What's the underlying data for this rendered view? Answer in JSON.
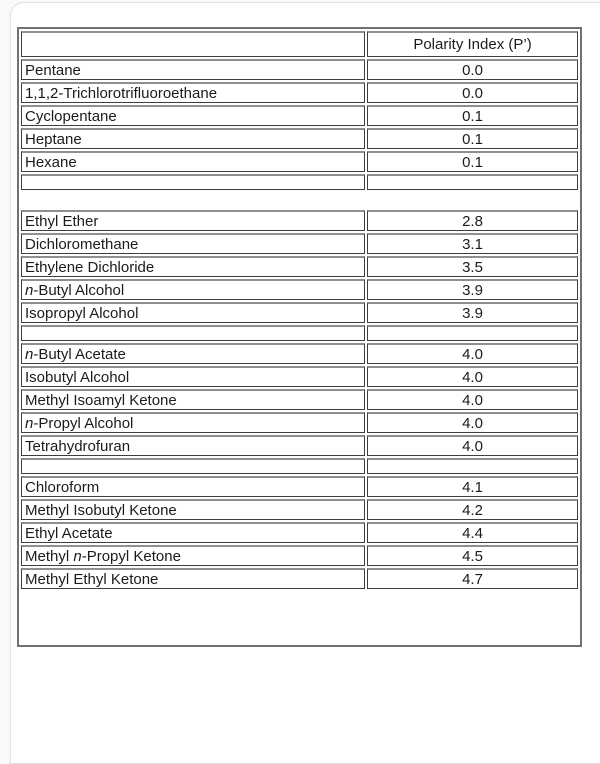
{
  "page": {
    "background_color": "#fafafa",
    "panel_border_color": "#e2e2e2"
  },
  "table": {
    "outer_border_color": "#717171",
    "cell_border_color": "#3e3e3e",
    "cell_border_top_color": "#8f8f8f",
    "header": {
      "name_column_label": "",
      "value_column_label": "Polarity Index (P’)"
    },
    "sections": [
      {
        "has_header": true,
        "trailing_empty_row": true,
        "groups": [
          [
            {
              "name": [
                {
                  "text": "Pentane"
                }
              ],
              "value": "0.0"
            },
            {
              "name": [
                {
                  "text": "1,1,2-Trichlorotrifluoroethane"
                }
              ],
              "value": "0.0"
            },
            {
              "name": [
                {
                  "text": "Cyclopentane"
                }
              ],
              "value": "0.1"
            },
            {
              "name": [
                {
                  "text": "Heptane"
                }
              ],
              "value": "0.1"
            },
            {
              "name": [
                {
                  "text": "Hexane"
                }
              ],
              "value": "0.1"
            }
          ]
        ]
      },
      {
        "has_header": false,
        "trailing_empty_row": false,
        "groups": [
          [
            {
              "name": [
                {
                  "text": "Ethyl Ether"
                }
              ],
              "value": "2.8"
            },
            {
              "name": [
                {
                  "text": "Dichloromethane"
                }
              ],
              "value": "3.1"
            },
            {
              "name": [
                {
                  "text": "Ethylene Dichloride"
                }
              ],
              "value": "3.5"
            },
            {
              "name": [
                {
                  "text": "n",
                  "italic": true
                },
                {
                  "text": "-Butyl Alcohol"
                }
              ],
              "value": "3.9"
            },
            {
              "name": [
                {
                  "text": "Isopropyl Alcohol"
                }
              ],
              "value": "3.9"
            }
          ],
          [
            {
              "name": [
                {
                  "text": "n",
                  "italic": true
                },
                {
                  "text": "-Butyl Acetate"
                }
              ],
              "value": "4.0"
            },
            {
              "name": [
                {
                  "text": "Isobutyl Alcohol"
                }
              ],
              "value": "4.0"
            },
            {
              "name": [
                {
                  "text": "Methyl Isoamyl Ketone"
                }
              ],
              "value": "4.0"
            },
            {
              "name": [
                {
                  "text": "n",
                  "italic": true
                },
                {
                  "text": "-Propyl Alcohol"
                }
              ],
              "value": "4.0"
            },
            {
              "name": [
                {
                  "text": "Tetrahydrofuran"
                }
              ],
              "value": "4.0"
            }
          ],
          [
            {
              "name": [
                {
                  "text": "Chloroform"
                }
              ],
              "value": "4.1"
            },
            {
              "name": [
                {
                  "text": "Methyl Isobutyl Ketone"
                }
              ],
              "value": "4.2"
            },
            {
              "name": [
                {
                  "text": "Ethyl Acetate"
                }
              ],
              "value": "4.4"
            },
            {
              "name": [
                {
                  "text": "Methyl "
                },
                {
                  "text": "n",
                  "italic": true
                },
                {
                  "text": "-Propyl Ketone"
                }
              ],
              "value": "4.5"
            },
            {
              "name": [
                {
                  "text": "Methyl Ethyl Ketone"
                }
              ],
              "value": "4.7"
            }
          ]
        ]
      }
    ]
  }
}
